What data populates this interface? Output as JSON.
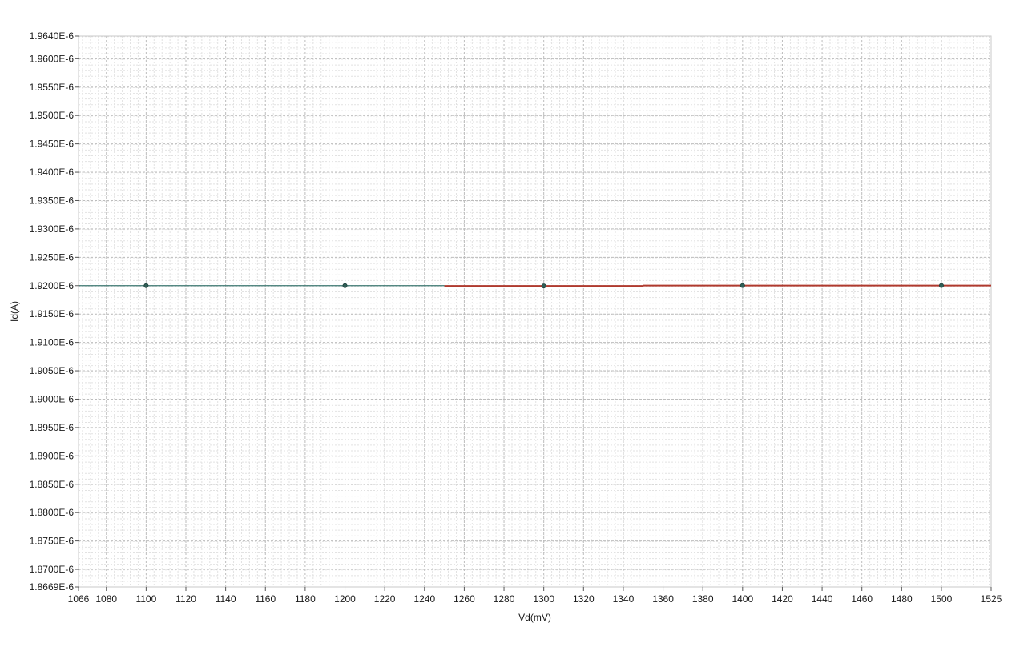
{
  "chart_data": {
    "type": "line",
    "title": "",
    "xlabel": "Vd(mV)",
    "ylabel": "Id(A)",
    "xlim": [
      1066,
      1525
    ],
    "ylim": [
      1.8669e-06,
      1.964e-06
    ],
    "x_ticks": [
      1066,
      1080,
      1100,
      1120,
      1140,
      1160,
      1180,
      1200,
      1220,
      1240,
      1260,
      1280,
      1300,
      1320,
      1340,
      1360,
      1380,
      1400,
      1420,
      1440,
      1460,
      1480,
      1500,
      1525
    ],
    "x_tick_labels": [
      "1066",
      "1080",
      "1100",
      "1120",
      "1140",
      "1160",
      "1180",
      "1200",
      "1220",
      "1240",
      "1260",
      "1280",
      "1300",
      "1320",
      "1340",
      "1360",
      "1380",
      "1400",
      "1420",
      "1440",
      "1460",
      "1480",
      "1500",
      "1525"
    ],
    "y_ticks": [
      1.8669e-06,
      1.87e-06,
      1.875e-06,
      1.88e-06,
      1.885e-06,
      1.89e-06,
      1.895e-06,
      1.9e-06,
      1.905e-06,
      1.91e-06,
      1.915e-06,
      1.92e-06,
      1.925e-06,
      1.93e-06,
      1.935e-06,
      1.94e-06,
      1.945e-06,
      1.95e-06,
      1.955e-06,
      1.96e-06,
      1.964e-06
    ],
    "y_tick_labels": [
      "1.8669E-6",
      "1.8700E-6",
      "1.8750E-6",
      "1.8800E-6",
      "1.8850E-6",
      "1.8900E-6",
      "1.8950E-6",
      "1.9000E-6",
      "1.9050E-6",
      "1.9100E-6",
      "1.9150E-6",
      "1.9200E-6",
      "1.9250E-6",
      "1.9300E-6",
      "1.9350E-6",
      "1.9400E-6",
      "1.9450E-6",
      "1.9500E-6",
      "1.9550E-6",
      "1.9600E-6",
      "1.9640E-6"
    ],
    "grid": true,
    "legend": "none",
    "series": [
      {
        "color": "#3e7a73",
        "x": [
          1066,
          1100,
          1200,
          1250
        ],
        "y": [
          1.92e-06,
          1.92e-06,
          1.92e-06,
          1.92e-06
        ]
      },
      {
        "color": "#b03a2e",
        "x": [
          1250,
          1300,
          1350
        ],
        "y": [
          1.91995e-06,
          1.91995e-06,
          1.91995e-06
        ]
      },
      {
        "color": "#b03a2e",
        "x": [
          1350,
          1400,
          1500,
          1525
        ],
        "y": [
          1.92002e-06,
          1.92002e-06,
          1.92002e-06,
          1.92002e-06
        ]
      }
    ],
    "points": {
      "color": "#2f5f57",
      "x": [
        1100,
        1200,
        1300,
        1400,
        1500
      ],
      "y": [
        1.92e-06,
        1.92e-06,
        1.91995e-06,
        1.92002e-06,
        1.92002e-06
      ]
    }
  }
}
